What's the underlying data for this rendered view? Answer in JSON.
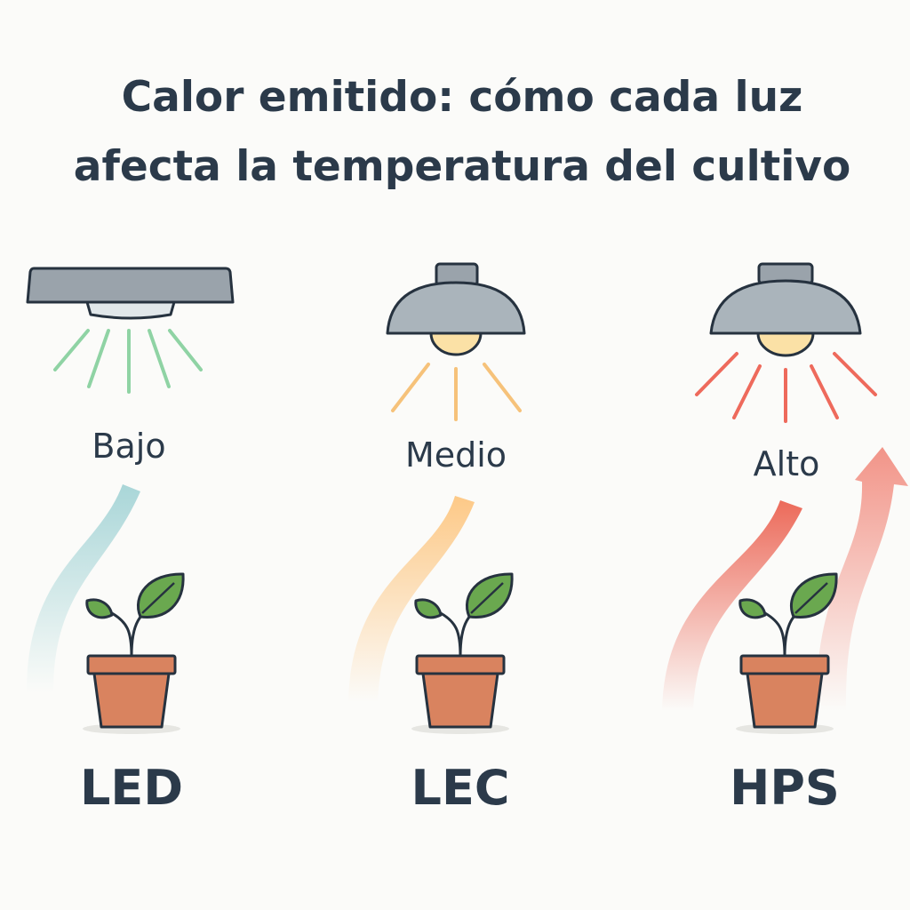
{
  "title": {
    "line1": "Calor emitido: cómo cada luz",
    "line2": "afecta la temperatura del cultivo"
  },
  "lights": [
    {
      "name": "LED",
      "heat_level": "Bajo",
      "ray_color": "#8fd3a4",
      "heat_color": "#a9d6d8",
      "icon": "led-panel-lamp-icon"
    },
    {
      "name": "LEC",
      "heat_level": "Medio",
      "ray_color": "#f6c27a",
      "heat_color": "#fdc987",
      "icon": "dome-lamp-icon"
    },
    {
      "name": "HPS",
      "heat_level": "Alto",
      "ray_color": "#ee6a5c",
      "heat_color": "#ec6a5a",
      "icon": "dome-lamp-icon"
    }
  ],
  "colors": {
    "text": "#2b3a4a",
    "pot": "#d9835f",
    "leaf": "#6aa84f",
    "lamp": "#a6b0b7"
  }
}
